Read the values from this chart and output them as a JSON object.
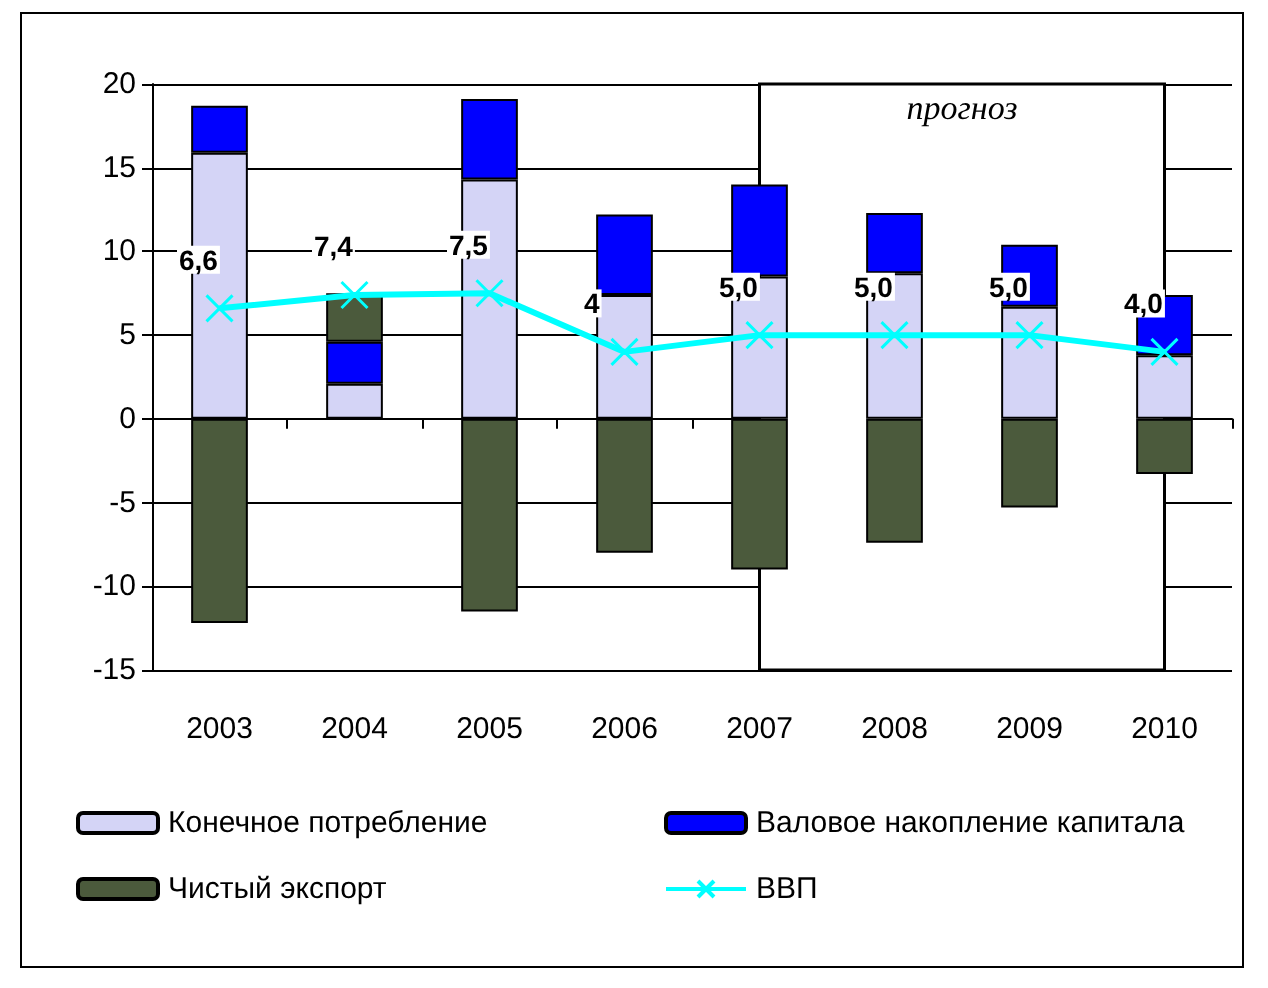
{
  "chart_data": {
    "type": "bar",
    "stacked": true,
    "categories": [
      "2003",
      "2004",
      "2005",
      "2006",
      "2007",
      "2008",
      "2009",
      "2010"
    ],
    "series": [
      {
        "name": "Конечное потребление",
        "color": "#d4d4f6",
        "values": [
          15.9,
          2.1,
          14.3,
          7.4,
          8.5,
          8.7,
          6.7,
          3.8
        ]
      },
      {
        "name": "Валовое накопление капитала",
        "color": "#0000ff",
        "values": [
          2.8,
          2.5,
          4.8,
          4.8,
          5.5,
          3.6,
          3.7,
          3.6
        ]
      },
      {
        "name": "Чистый экспорт",
        "color": "#4b5a3c",
        "values": [
          -12.2,
          2.9,
          -11.5,
          -8.0,
          -9.0,
          -7.4,
          -5.3,
          -3.3
        ]
      },
      {
        "name": "ВВП",
        "type": "line",
        "color": "#00ffff",
        "marker": "cross",
        "values": [
          6.6,
          7.4,
          7.5,
          4,
          5.0,
          5.0,
          5.0,
          4.0
        ],
        "value_labels": [
          "6,6",
          "7,4",
          "7,5",
          "4",
          "5,0",
          "5,0",
          "5,0",
          "4,0"
        ]
      }
    ],
    "ylim": [
      -15,
      20
    ],
    "yticks": [
      -15,
      -10,
      -5,
      0,
      5,
      10,
      15,
      20
    ],
    "grid": "y",
    "legend": "bottom",
    "bands": [
      {
        "axis": "x",
        "from": "2007",
        "to": "2010",
        "label": "прогноз",
        "color": "#ffffff"
      }
    ]
  }
}
